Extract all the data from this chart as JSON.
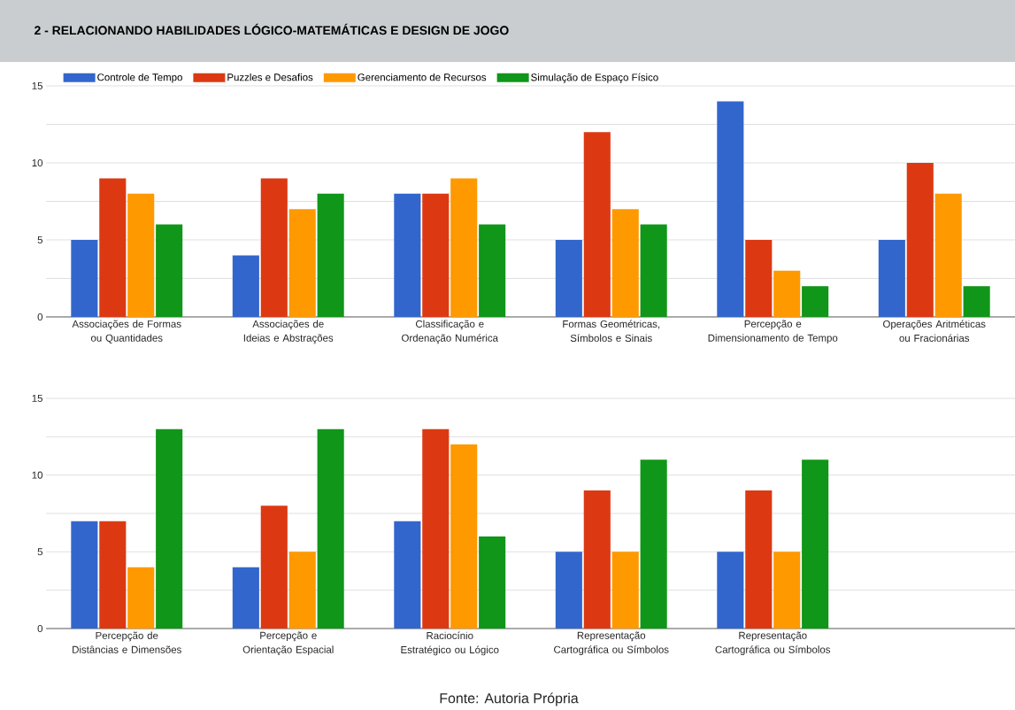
{
  "chart_data": [
    {
      "type": "bar",
      "title": "2 - RELACIONANDO HABILIDADES LÓGICO-MATEMÁTICAS E DESIGN DE JOGO",
      "categories": [
        "Associações de Formas ou Quantidades",
        "Associações de Ideias e Abstrações",
        "Classificação e Ordenação Numérica",
        "Formas Geométricas, Símbolos e Sinais",
        "Percepção e Dimensionamento de Tempo",
        "Operações Aritméticas ou Fracionárias"
      ],
      "series": [
        {
          "name": "Controle de Tempo",
          "color": "#3366cc",
          "values": [
            5,
            4,
            8,
            5,
            14,
            5
          ]
        },
        {
          "name": "Puzzles e Desafios",
          "color": "#dc3912",
          "values": [
            9,
            9,
            8,
            12,
            5,
            10
          ]
        },
        {
          "name": "Gerenciamento de Recursos",
          "color": "#ff9900",
          "values": [
            8,
            7,
            9,
            7,
            3,
            8
          ]
        },
        {
          "name": "Simulação de Espaço Físico",
          "color": "#109618",
          "values": [
            6,
            8,
            6,
            6,
            2,
            2
          ]
        }
      ],
      "ylim": [
        0,
        15
      ],
      "yticks": [
        0,
        {
          "value": 2.5,
          "label": null
        },
        5,
        {
          "value": 7.5,
          "label": null
        },
        10,
        {
          "value": 12.5,
          "label": null
        },
        15
      ],
      "grid": "y",
      "legend": "top"
    },
    {
      "type": "bar",
      "categories": [
        "Percepção de Distâncias e Dimensões",
        "Percepção e Orientação Espacial",
        "Raciocínio Estratégico ou Lógico",
        "Representação Cartográfica ou Símbolos",
        "Representação Cartográfica ou Símbolos"
      ],
      "series": [
        {
          "color": "#3366cc",
          "values": [
            7,
            4,
            7,
            5,
            5
          ]
        },
        {
          "color": "#dc3912",
          "values": [
            7,
            8,
            13,
            9,
            9
          ]
        },
        {
          "color": "#ff9900",
          "values": [
            4,
            5,
            12,
            5,
            5
          ]
        },
        {
          "color": "#109618",
          "values": [
            13,
            13,
            6,
            11,
            11
          ]
        }
      ],
      "ylim": [
        0,
        15
      ],
      "yticks": [
        0,
        {
          "value": 2.5,
          "label": null
        },
        5,
        {
          "value": 7.5,
          "label": null
        },
        10,
        {
          "value": 12.5,
          "label": null
        },
        15
      ],
      "grid": "y",
      "annotations": [
        "Fonte: Autoria Própria"
      ]
    }
  ]
}
